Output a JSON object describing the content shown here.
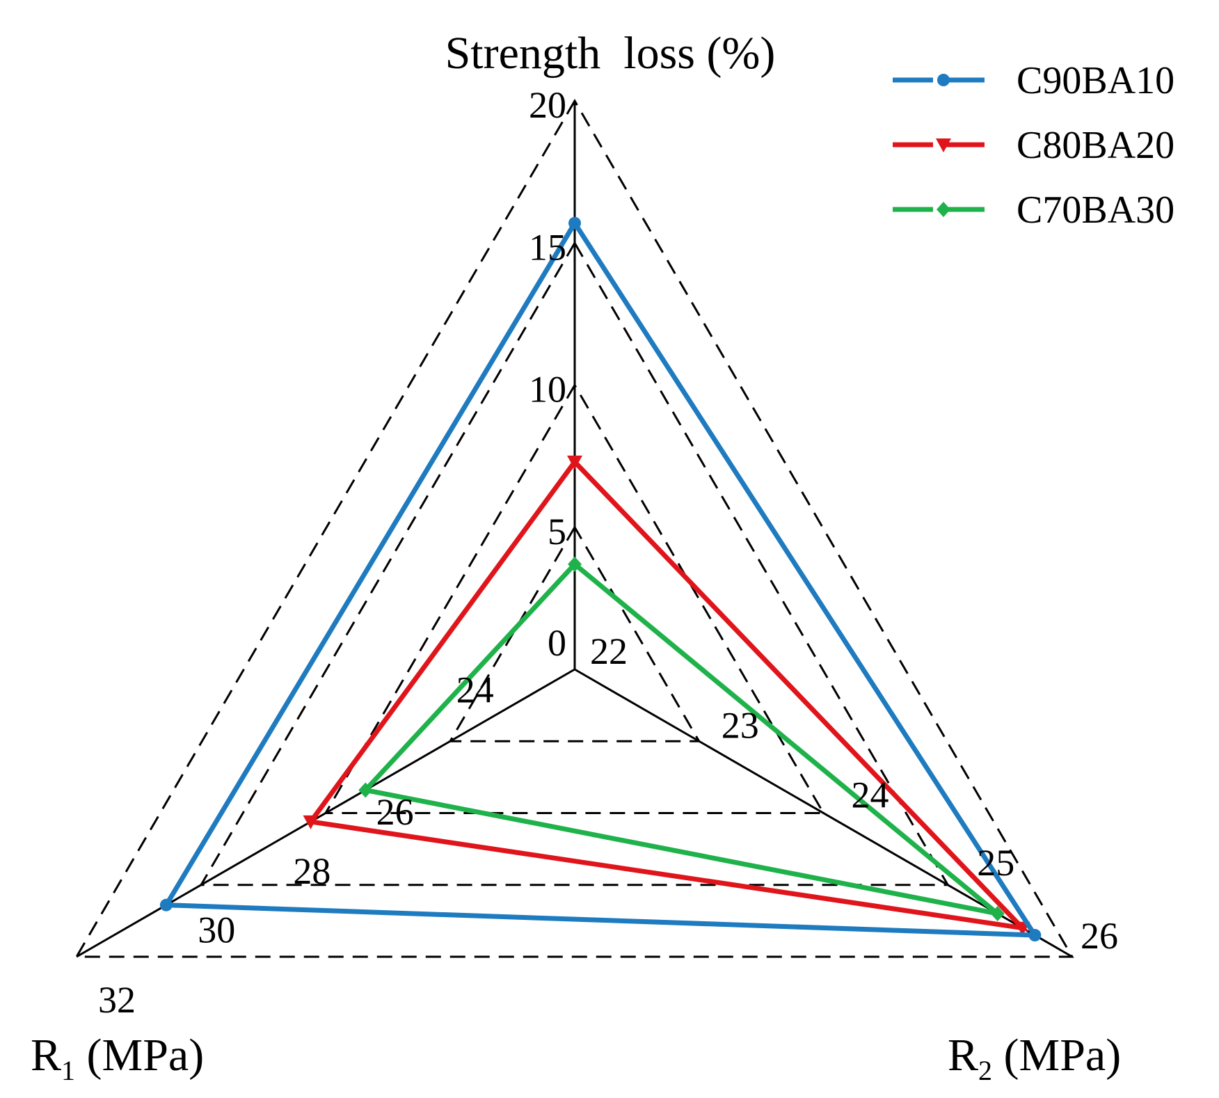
{
  "chart_data": {
    "type": "radar",
    "title": "",
    "axes": [
      {
        "id": "strength_loss",
        "label_main": "Strength  loss (%)",
        "label_sub": "",
        "label_unit": "",
        "min": 0,
        "max": 20,
        "ticks": [
          0,
          5,
          10,
          15,
          20
        ]
      },
      {
        "id": "r1",
        "label_main": "R",
        "label_sub": "1",
        "label_unit": " (MPa)",
        "min": 22,
        "max": 32,
        "ticks": [
          24,
          26,
          28,
          30,
          32
        ]
      },
      {
        "id": "r2",
        "label_main": "R",
        "label_sub": "2",
        "label_unit": " (MPa)",
        "min": 22,
        "max": 26,
        "ticks": [
          22,
          23,
          24,
          25,
          26
        ]
      }
    ],
    "series": [
      {
        "name": "C90BA10",
        "color": "#1f7bc0",
        "marker": "circle",
        "values": {
          "strength_loss": 15.7,
          "r1": 30.2,
          "r2": 25.7
        }
      },
      {
        "name": "C80BA20",
        "color": "#e0151b",
        "marker": "triangle",
        "values": {
          "strength_loss": 7.3,
          "r1": 27.3,
          "r2": 25.6
        }
      },
      {
        "name": "C70BA30",
        "color": "#1fb24a",
        "marker": "diamond",
        "values": {
          "strength_loss": 3.7,
          "r1": 26.2,
          "r2": 25.4
        }
      }
    ],
    "legend_position": "top-right"
  }
}
